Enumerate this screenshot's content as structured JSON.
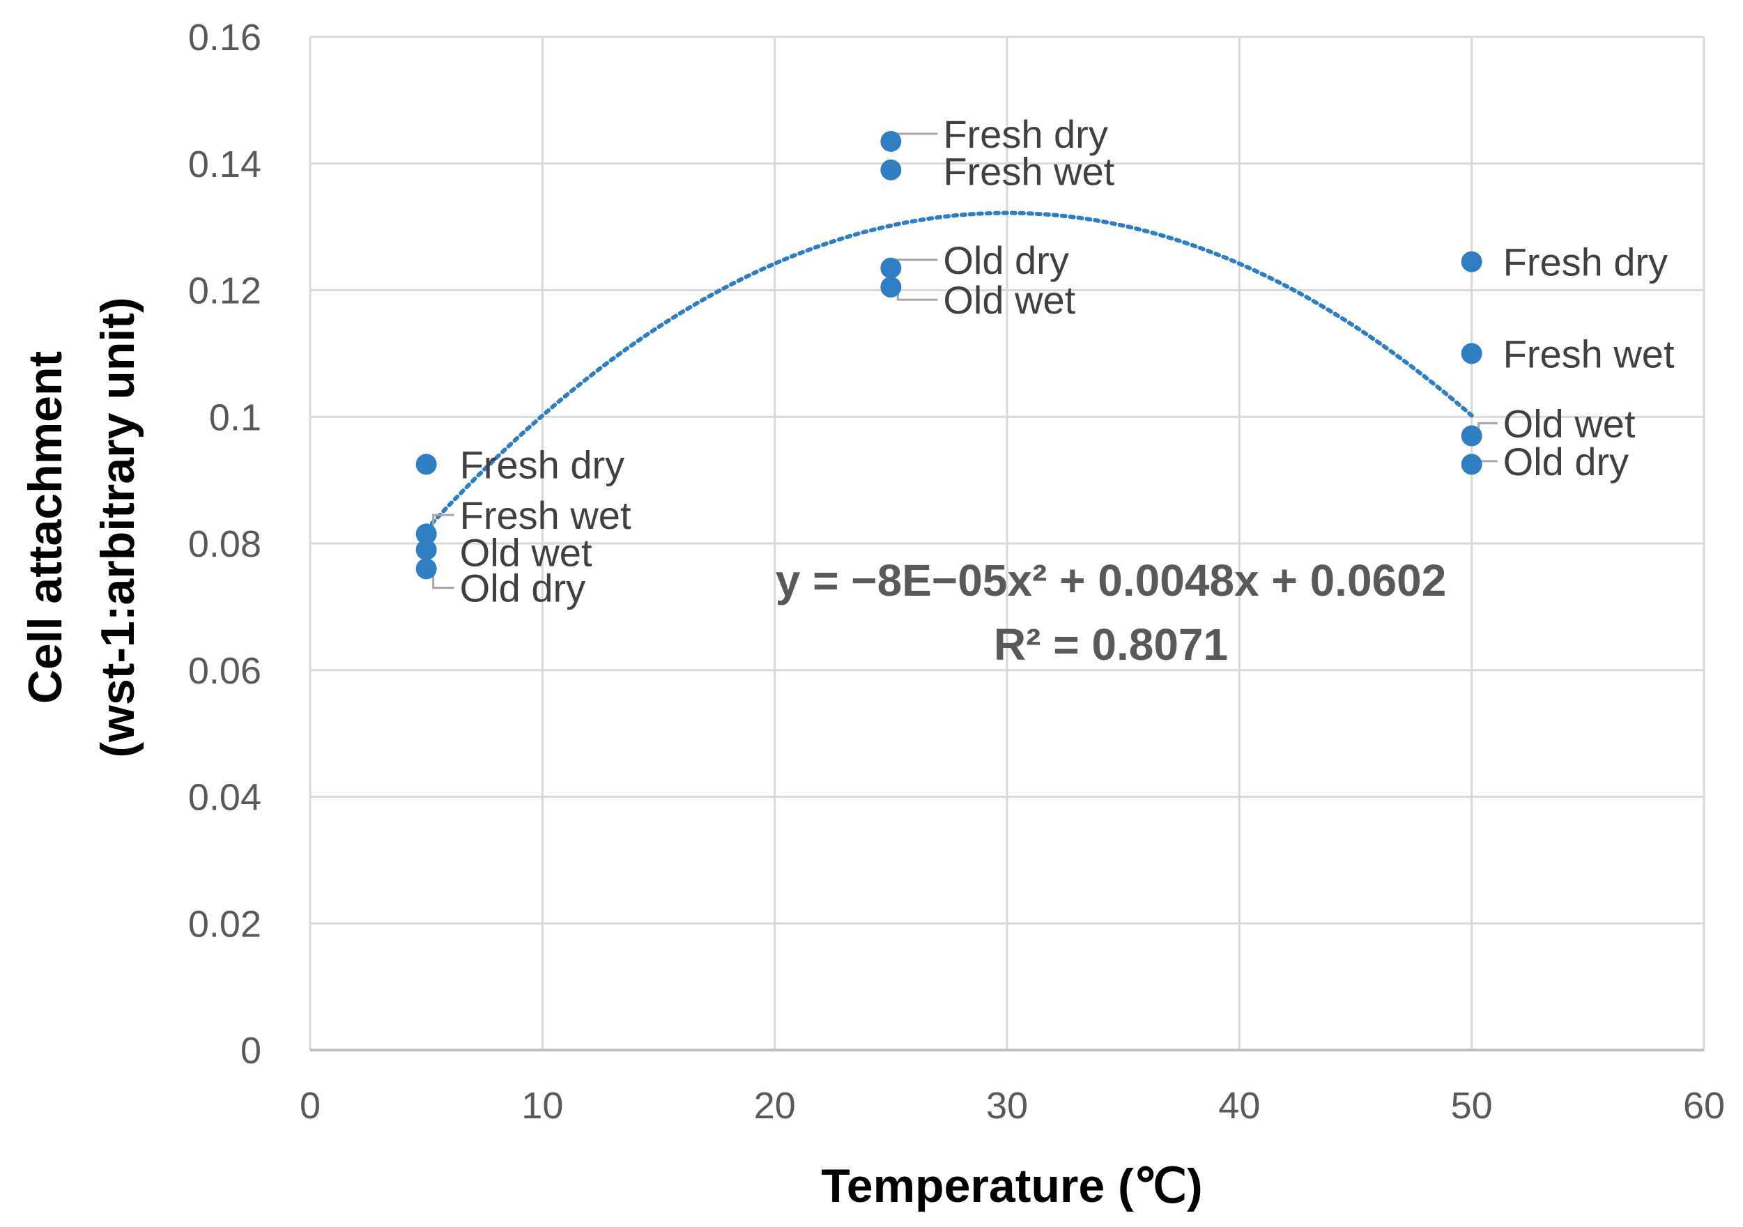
{
  "chart_data": {
    "type": "scatter",
    "title": "",
    "xlabel": "Temperature (℃)",
    "ylabel_line1": "Cell attachment",
    "ylabel_line2": "(wst-1:arbitrary unit)",
    "xlim": [
      0,
      60
    ],
    "ylim": [
      0,
      0.16
    ],
    "grid": true,
    "x_ticks": [
      "0",
      "10",
      "20",
      "30",
      "40",
      "50",
      "60"
    ],
    "y_ticks": [
      "0",
      "0.02",
      "0.04",
      "0.06",
      "0.08",
      "0.1",
      "0.12",
      "0.14",
      "0.16"
    ],
    "marker_color": "#2E7EC1",
    "points": [
      {
        "x": 5,
        "y": 0.0925,
        "label": "Fresh dry"
      },
      {
        "x": 5,
        "y": 0.0815,
        "label": "Fresh wet"
      },
      {
        "x": 5,
        "y": 0.079,
        "label": "Old wet"
      },
      {
        "x": 5,
        "y": 0.076,
        "label": "Old dry"
      },
      {
        "x": 25,
        "y": 0.1435,
        "label": "Fresh dry"
      },
      {
        "x": 25,
        "y": 0.139,
        "label": "Fresh wet"
      },
      {
        "x": 25,
        "y": 0.1235,
        "label": "Old dry"
      },
      {
        "x": 25,
        "y": 0.1205,
        "label": "Old wet"
      },
      {
        "x": 50,
        "y": 0.1245,
        "label": "Fresh dry"
      },
      {
        "x": 50,
        "y": 0.11,
        "label": "Fresh wet"
      },
      {
        "x": 50,
        "y": 0.097,
        "label": "Old wet"
      },
      {
        "x": 50,
        "y": 0.0925,
        "label": "Old dry"
      }
    ],
    "trendline": {
      "type": "polynomial",
      "coefficients": {
        "a": -8e-05,
        "b": 0.0048,
        "c": 0.0602
      },
      "x_range": [
        5,
        50
      ],
      "equation": "y = −8E−05x² + 0.0048x + 0.0602",
      "r_squared": "R² = 0.8071",
      "color": "#2E7EC1"
    }
  }
}
